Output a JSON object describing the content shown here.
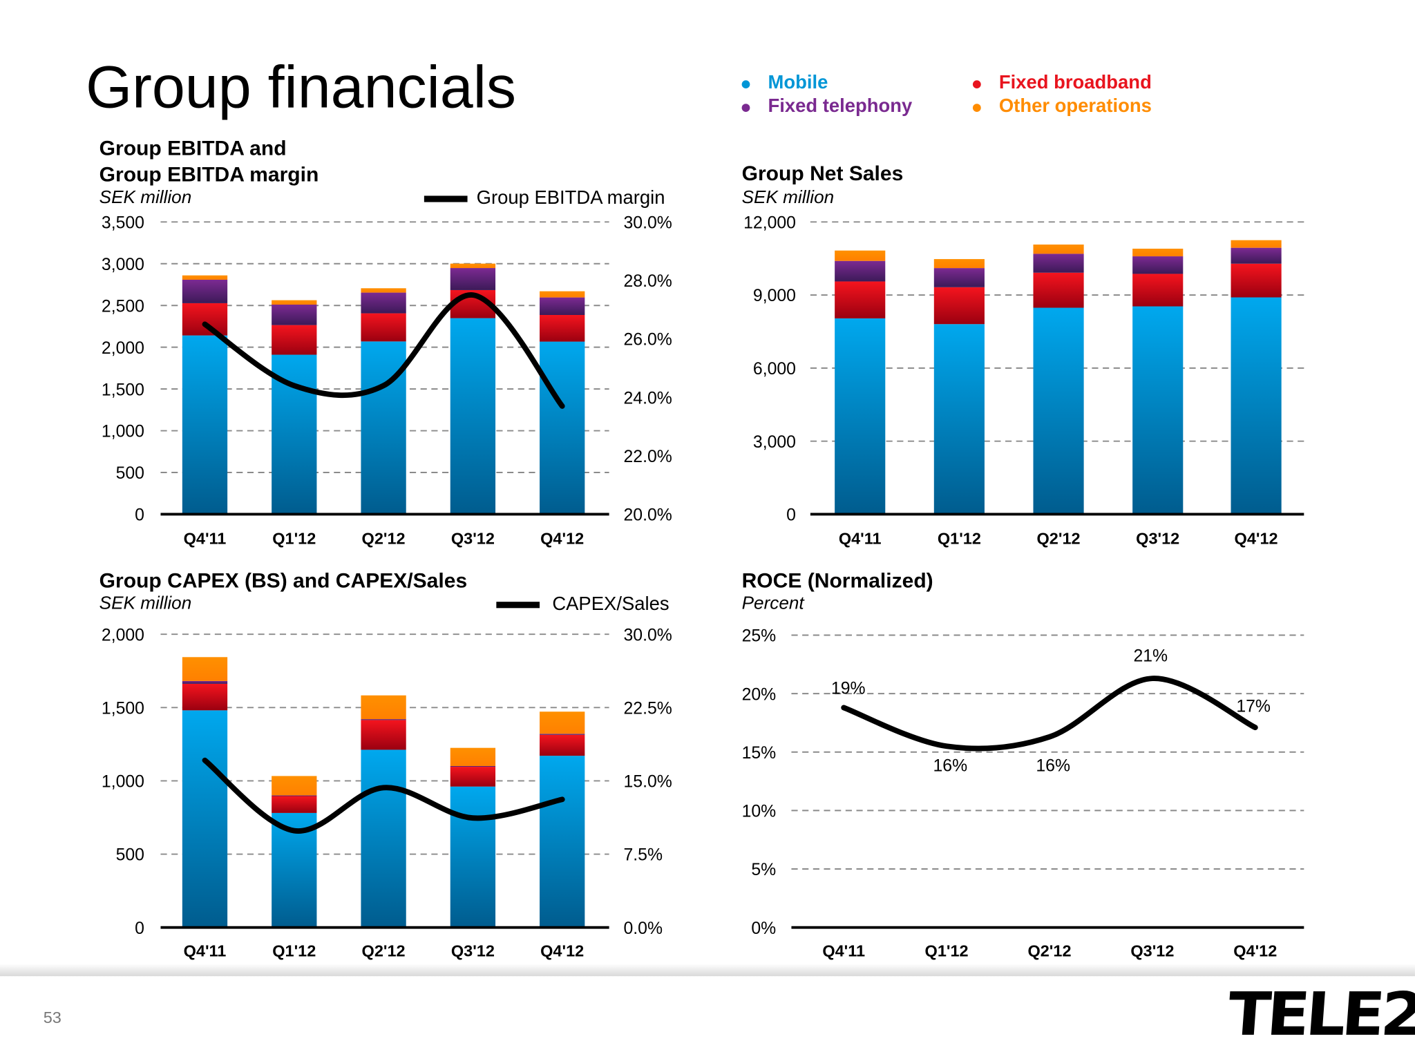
{
  "page": {
    "title": "Group financials",
    "page_number": "53",
    "logo_text": "TELE2"
  },
  "legend": [
    {
      "label": "Mobile",
      "color": "#0096d6"
    },
    {
      "label": "Fixed telephony",
      "color": "#7a2a90"
    },
    {
      "label": "Fixed broadband",
      "color": "#e8141e"
    },
    {
      "label": "Other operations",
      "color": "#ff8c00"
    }
  ],
  "chart_data": [
    {
      "id": "ebitda",
      "type": "bar",
      "stacked": true,
      "title_line1": "Group EBITDA and",
      "title_line2": "Group EBITDA margin",
      "ylabel": "SEK million",
      "categories": [
        "Q4'11",
        "Q1'12",
        "Q2'12",
        "Q3'12",
        "Q4'12"
      ],
      "ylim": [
        0,
        3500
      ],
      "yticks": [
        "0",
        "500",
        "1,000",
        "1,500",
        "2,000",
        "2,500",
        "3,000",
        "3,500"
      ],
      "y2lim": [
        20,
        30
      ],
      "y2ticks": [
        "20.0%",
        "22.0%",
        "24.0%",
        "26.0%",
        "28.0%",
        "30.0%"
      ],
      "grid": true,
      "series": [
        {
          "name": "Mobile",
          "values": [
            2141,
            1910,
            2069,
            2348,
            2067
          ]
        },
        {
          "name": "Fixed broadband",
          "values": [
            386,
            355,
            337,
            336,
            319
          ]
        },
        {
          "name": "Fixed telephony",
          "values": [
            281,
            245,
            248,
            264,
            210
          ]
        },
        {
          "name": "Other operations",
          "values": [
            52,
            53,
            52,
            53,
            74
          ]
        }
      ],
      "line": {
        "name": "Group EBITDA margin",
        "axis": "right",
        "values": [
          26.5,
          24.4,
          24.4,
          27.5,
          23.7
        ]
      }
    },
    {
      "id": "sales",
      "type": "bar",
      "stacked": true,
      "title_line1": "Group Net Sales",
      "ylabel": "SEK million",
      "categories": [
        "Q4'11",
        "Q1'12",
        "Q2'12",
        "Q3'12",
        "Q4'12"
      ],
      "ylim": [
        0,
        12000
      ],
      "yticks": [
        "0",
        "3,000",
        "6,000",
        "9,000",
        "12,000"
      ],
      "grid": true,
      "series": [
        {
          "name": "Mobile",
          "values": [
            8041,
            7805,
            8477,
            8534,
            8903
          ]
        },
        {
          "name": "Fixed broadband",
          "values": [
            1516,
            1515,
            1440,
            1335,
            1383
          ]
        },
        {
          "name": "Fixed telephony",
          "values": [
            843,
            786,
            776,
            720,
            654
          ]
        },
        {
          "name": "Other operations",
          "values": [
            426,
            369,
            379,
            313,
            312
          ]
        }
      ]
    },
    {
      "id": "capex",
      "type": "bar",
      "stacked": true,
      "title_line1": "Group CAPEX (BS) and CAPEX/Sales",
      "ylabel": "SEK million",
      "categories": [
        "Q4'11",
        "Q1'12",
        "Q2'12",
        "Q3'12",
        "Q4'12"
      ],
      "ylim": [
        0,
        2000
      ],
      "yticks": [
        "0",
        "500",
        "1,000",
        "1,500",
        "2,000"
      ],
      "y2lim": [
        0,
        30
      ],
      "y2ticks": [
        "0.0%",
        "7.5%",
        "15.0%",
        "22.5%",
        "30.0%"
      ],
      "grid": true,
      "series": [
        {
          "name": "Mobile",
          "values": [
            1481,
            781,
            1212,
            961,
            1171
          ]
        },
        {
          "name": "Fixed broadband",
          "values": [
            181,
            115,
            203,
            135,
            143
          ]
        },
        {
          "name": "Fixed telephony",
          "values": [
            19,
            5,
            6,
            5,
            7
          ]
        },
        {
          "name": "Other operations",
          "values": [
            163,
            132,
            162,
            124,
            151
          ]
        }
      ],
      "line": {
        "name": "CAPEX/Sales",
        "axis": "right",
        "values": [
          17.1,
          9.9,
          14.3,
          11.2,
          13.1
        ]
      }
    },
    {
      "id": "roce",
      "type": "line",
      "title_line1": "ROCE (Normalized)",
      "ylabel": "Percent",
      "categories": [
        "Q4'11",
        "Q1'12",
        "Q2'12",
        "Q3'12",
        "Q4'12"
      ],
      "ylim": [
        0,
        25
      ],
      "yticks": [
        "0%",
        "5%",
        "10%",
        "15%",
        "20%",
        "25%"
      ],
      "grid": true,
      "series": [
        {
          "values": [
            18.8,
            15.5,
            16.3,
            21.3,
            17.1
          ],
          "data_labels": [
            "19%",
            "16%",
            "16%",
            "21%",
            "17%"
          ]
        }
      ]
    }
  ]
}
